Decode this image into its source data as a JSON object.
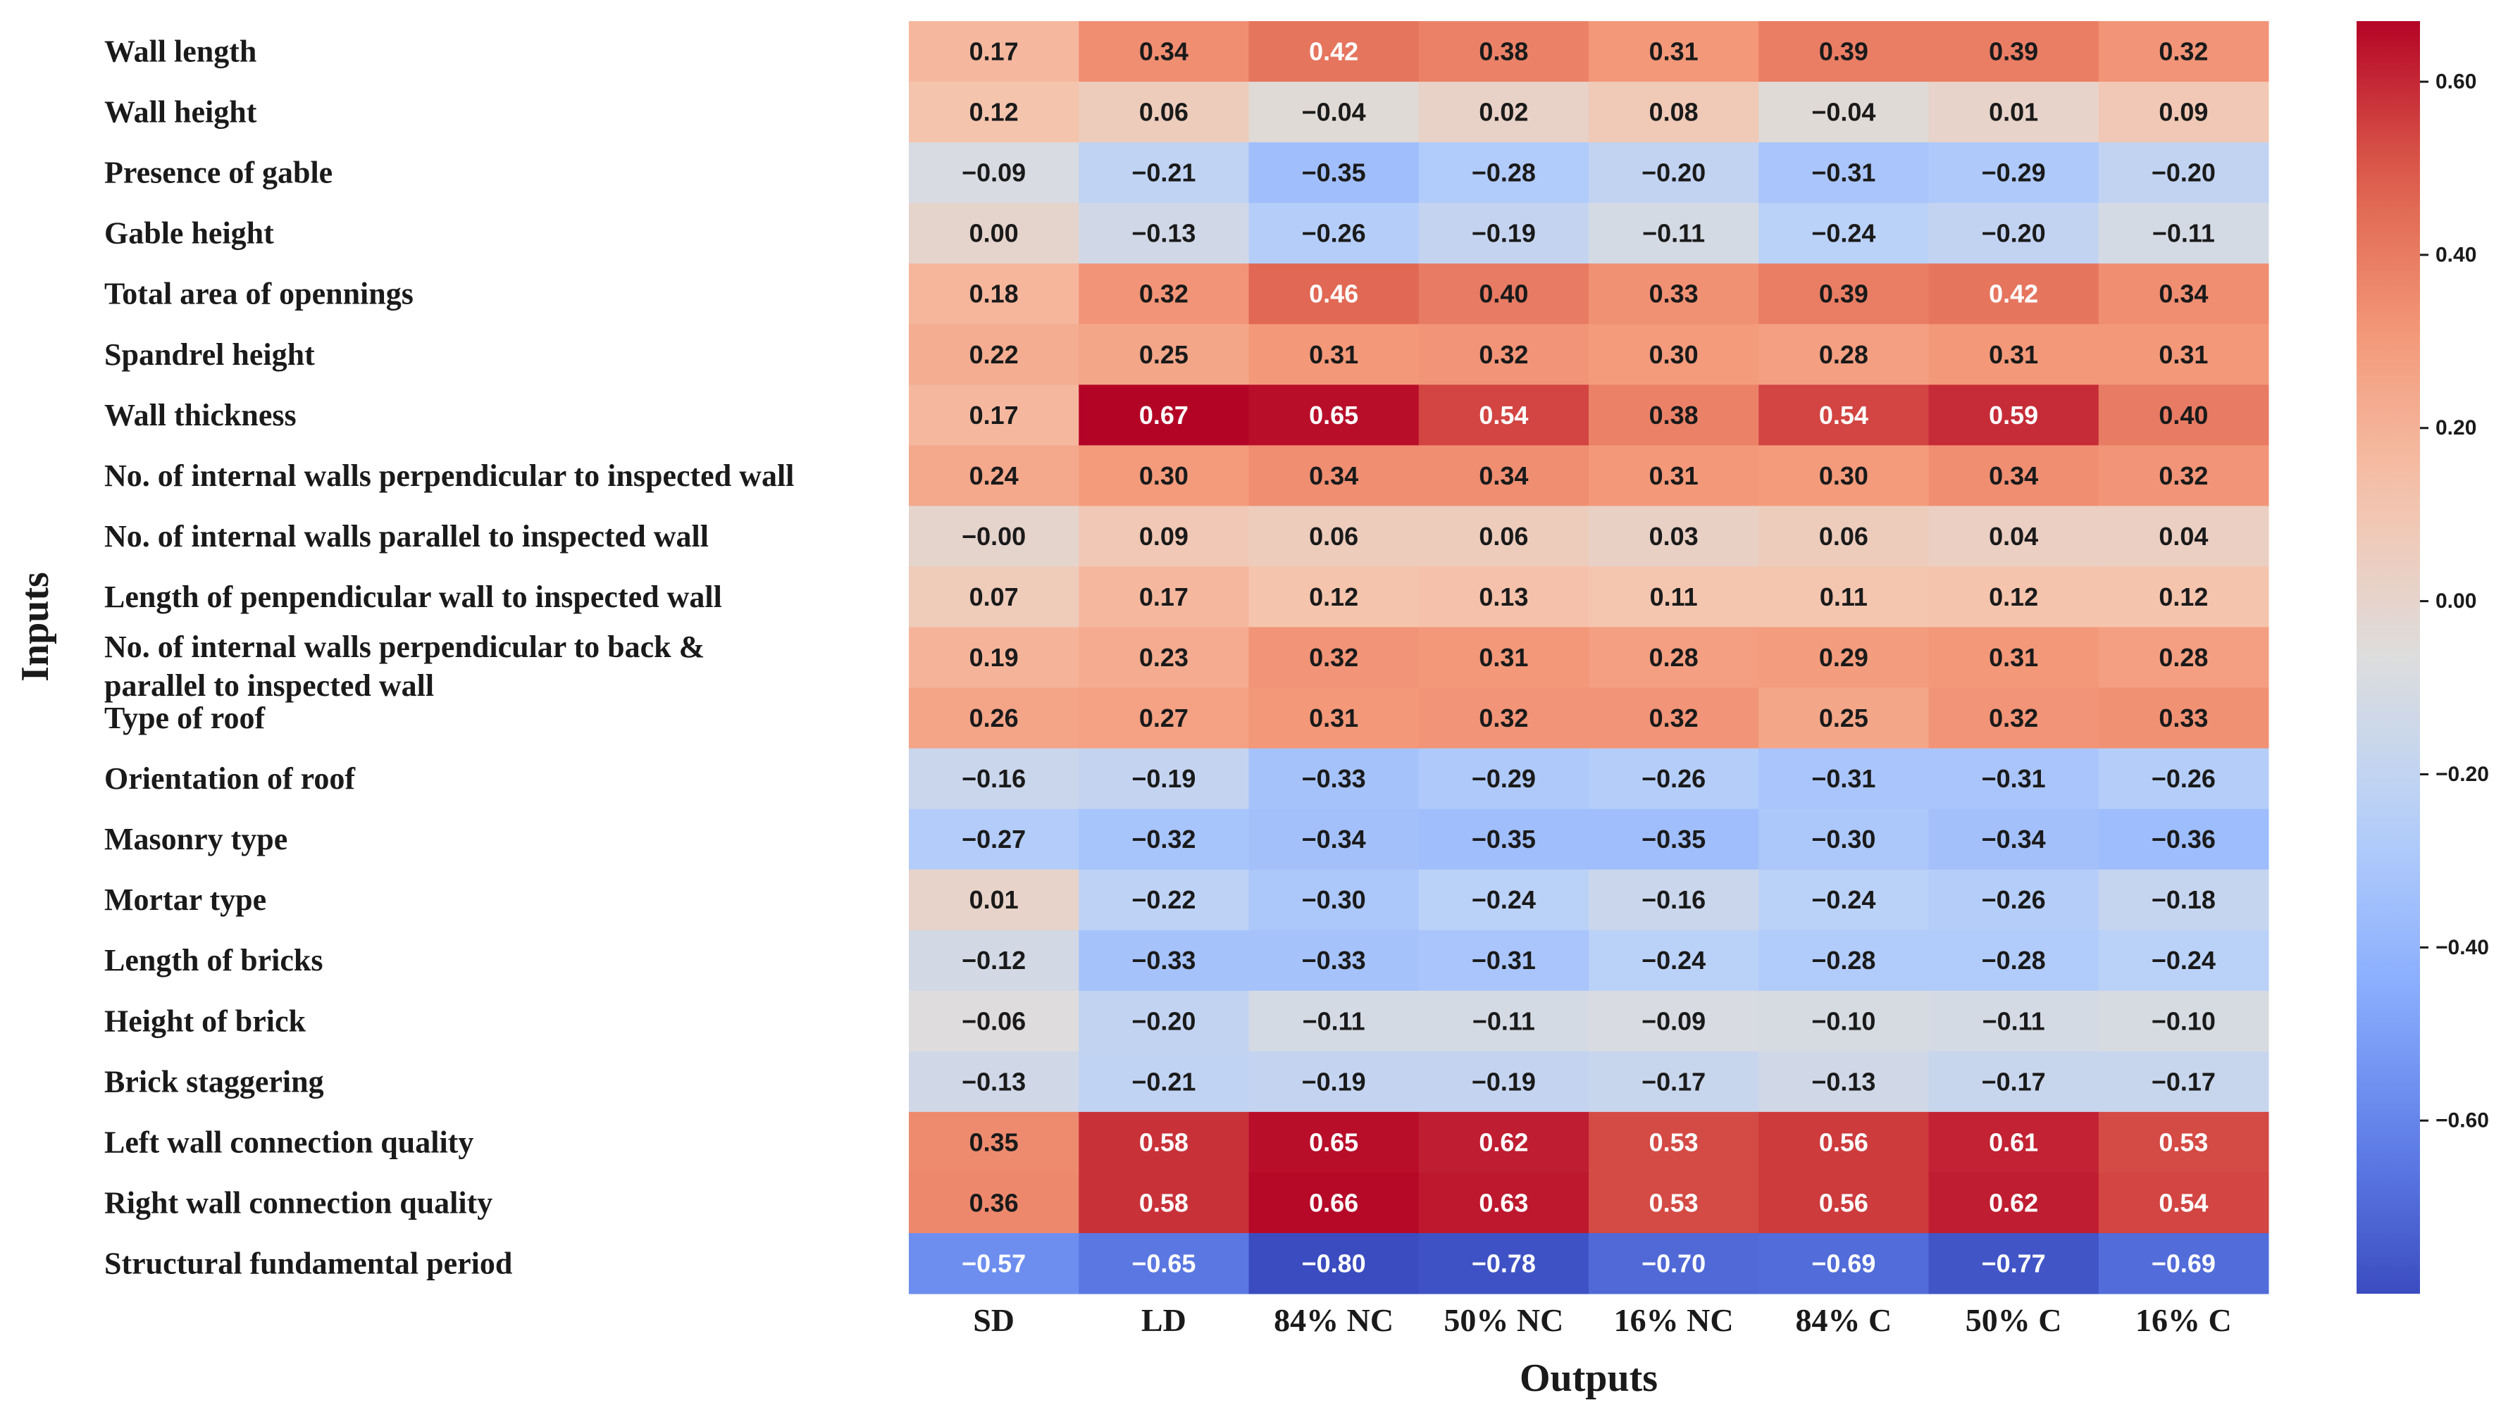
{
  "chart_data": {
    "type": "heatmap",
    "xlabel": "Outputs",
    "ylabel": "Inputs",
    "columns": [
      "SD",
      "LD",
      "84% NC",
      "50% NC",
      "16% NC",
      "84% C",
      "50% C",
      "16% C"
    ],
    "rows": [
      {
        "label": "Wall length",
        "values": [
          0.17,
          0.34,
          0.42,
          0.38,
          0.31,
          0.39,
          0.39,
          0.32
        ]
      },
      {
        "label": "Wall height",
        "values": [
          0.12,
          0.06,
          -0.04,
          0.02,
          0.08,
          -0.04,
          0.01,
          0.09
        ]
      },
      {
        "label": "Presence of gable",
        "values": [
          -0.09,
          -0.21,
          -0.35,
          -0.28,
          -0.2,
          -0.31,
          -0.29,
          -0.2
        ]
      },
      {
        "label": "Gable height",
        "values": [
          0.0,
          -0.13,
          -0.26,
          -0.19,
          -0.11,
          -0.24,
          -0.2,
          -0.11
        ]
      },
      {
        "label": "Total area of opennings",
        "values": [
          0.18,
          0.32,
          0.46,
          0.4,
          0.33,
          0.39,
          0.42,
          0.34
        ]
      },
      {
        "label": "Spandrel height",
        "values": [
          0.22,
          0.25,
          0.31,
          0.32,
          0.3,
          0.28,
          0.31,
          0.31
        ]
      },
      {
        "label": "Wall thickness",
        "values": [
          0.17,
          0.67,
          0.65,
          0.54,
          0.38,
          0.54,
          0.59,
          0.4
        ]
      },
      {
        "label": "No. of internal walls perpendicular to inspected wall",
        "values": [
          0.24,
          0.3,
          0.34,
          0.34,
          0.31,
          0.3,
          0.34,
          0.32
        ]
      },
      {
        "label": "No. of internal walls parallel to inspected wall",
        "values": [
          -0.0,
          0.09,
          0.06,
          0.06,
          0.03,
          0.06,
          0.04,
          0.04
        ]
      },
      {
        "label": "Length of penpendicular wall to inspected wall",
        "values": [
          0.07,
          0.17,
          0.12,
          0.13,
          0.11,
          0.11,
          0.12,
          0.12
        ]
      },
      {
        "label": "No. of internal walls perpendicular to back & parallel to inspected wall",
        "values": [
          0.19,
          0.23,
          0.32,
          0.31,
          0.28,
          0.29,
          0.31,
          0.28
        ]
      },
      {
        "label": "Type of roof",
        "values": [
          0.26,
          0.27,
          0.31,
          0.32,
          0.32,
          0.25,
          0.32,
          0.33
        ]
      },
      {
        "label": "Orientation of roof",
        "values": [
          -0.16,
          -0.19,
          -0.33,
          -0.29,
          -0.26,
          -0.31,
          -0.31,
          -0.26
        ]
      },
      {
        "label": "Masonry type",
        "values": [
          -0.27,
          -0.32,
          -0.34,
          -0.35,
          -0.35,
          -0.3,
          -0.34,
          -0.36
        ]
      },
      {
        "label": "Mortar type",
        "values": [
          0.01,
          -0.22,
          -0.3,
          -0.24,
          -0.16,
          -0.24,
          -0.26,
          -0.18
        ]
      },
      {
        "label": "Length of bricks",
        "values": [
          -0.12,
          -0.33,
          -0.33,
          -0.31,
          -0.24,
          -0.28,
          -0.28,
          -0.24
        ]
      },
      {
        "label": "Height of brick",
        "values": [
          -0.06,
          -0.2,
          -0.11,
          -0.11,
          -0.09,
          -0.1,
          -0.11,
          -0.1
        ]
      },
      {
        "label": "Brick staggering",
        "values": [
          -0.13,
          -0.21,
          -0.19,
          -0.19,
          -0.17,
          -0.13,
          -0.17,
          -0.17
        ]
      },
      {
        "label": "Left wall connection quality",
        "values": [
          0.35,
          0.58,
          0.65,
          0.62,
          0.53,
          0.56,
          0.61,
          0.53
        ]
      },
      {
        "label": "Right wall connection quality",
        "values": [
          0.36,
          0.58,
          0.66,
          0.63,
          0.53,
          0.56,
          0.62,
          0.54
        ]
      },
      {
        "label": "Structural fundamental period",
        "values": [
          -0.57,
          -0.65,
          -0.8,
          -0.78,
          -0.7,
          -0.69,
          -0.77,
          -0.69
        ]
      }
    ],
    "colorbar": {
      "colormap": "coolwarm",
      "vmin": -0.8,
      "vmax": 0.67,
      "ticks": [
        0.6,
        0.4,
        0.2,
        0.0,
        -0.2,
        -0.4,
        -0.6
      ],
      "tick_labels": [
        "0.60",
        "0.40",
        "0.20",
        "0.00",
        "−0.20",
        "−0.40",
        "−0.60"
      ]
    }
  }
}
